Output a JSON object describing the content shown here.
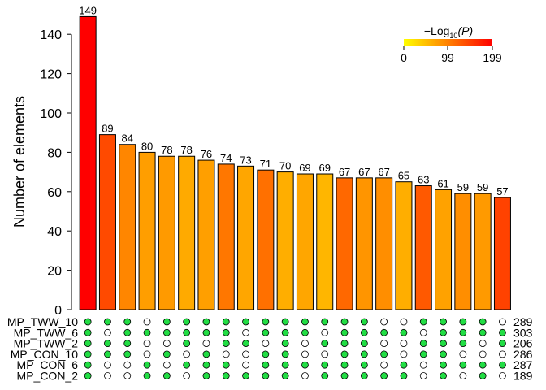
{
  "chart_data": {
    "type": "bar",
    "ylabel": "Number of elements",
    "ylim": [
      0,
      150
    ],
    "yticks": [
      0,
      20,
      40,
      60,
      80,
      100,
      120,
      140
    ],
    "values": [
      149,
      89,
      84,
      80,
      78,
      78,
      76,
      74,
      73,
      71,
      70,
      69,
      69,
      67,
      67,
      67,
      65,
      63,
      61,
      59,
      59,
      57
    ],
    "neg_log10_p": [
      199,
      150,
      110,
      90,
      95,
      75,
      88,
      120,
      80,
      125,
      70,
      80,
      60,
      130,
      100,
      105,
      70,
      140,
      85,
      105,
      95,
      155
    ],
    "colorbar": {
      "label_prefix": "−Log",
      "label_sub": "10",
      "label_suffix": "(P)",
      "ticks": [
        "0",
        "99",
        "199"
      ],
      "min": 0,
      "max": 199,
      "low_color": "#FFFF00",
      "high_color": "#FF0000"
    },
    "sets": [
      {
        "name": "MP_TWW_10",
        "size": "289"
      },
      {
        "name": "MP_TWW_6",
        "size": "303"
      },
      {
        "name": "MP_TWW_2",
        "size": "206"
      },
      {
        "name": "MP_CON_10",
        "size": "286"
      },
      {
        "name": "MP_CON_6",
        "size": "287"
      },
      {
        "name": "MP_CON_2",
        "size": "189"
      }
    ],
    "matrix": [
      [
        1,
        1,
        1,
        1,
        1,
        1
      ],
      [
        1,
        0,
        1,
        1,
        0,
        0
      ],
      [
        1,
        1,
        1,
        1,
        0,
        0
      ],
      [
        0,
        1,
        0,
        0,
        1,
        1
      ],
      [
        1,
        1,
        0,
        1,
        0,
        1
      ],
      [
        1,
        1,
        1,
        0,
        1,
        0
      ],
      [
        1,
        1,
        0,
        1,
        1,
        1
      ],
      [
        1,
        1,
        1,
        0,
        1,
        1
      ],
      [
        1,
        0,
        1,
        0,
        0,
        1
      ],
      [
        1,
        1,
        0,
        1,
        1,
        1
      ],
      [
        1,
        1,
        1,
        1,
        1,
        1
      ],
      [
        1,
        1,
        0,
        0,
        1,
        0
      ],
      [
        1,
        0,
        1,
        0,
        1,
        1
      ],
      [
        1,
        1,
        1,
        1,
        1,
        1
      ],
      [
        1,
        1,
        1,
        1,
        1,
        1
      ],
      [
        0,
        1,
        0,
        1,
        0,
        1
      ],
      [
        0,
        1,
        0,
        0,
        1,
        1
      ],
      [
        1,
        0,
        1,
        1,
        0,
        0
      ],
      [
        1,
        1,
        1,
        1,
        1,
        1
      ],
      [
        1,
        1,
        1,
        0,
        1,
        0
      ],
      [
        1,
        1,
        0,
        0,
        1,
        1
      ],
      [
        0,
        1,
        1,
        0,
        1,
        0
      ]
    ],
    "dot_on_color": "#22DD44",
    "dot_off_color": "#FFFFFF"
  }
}
